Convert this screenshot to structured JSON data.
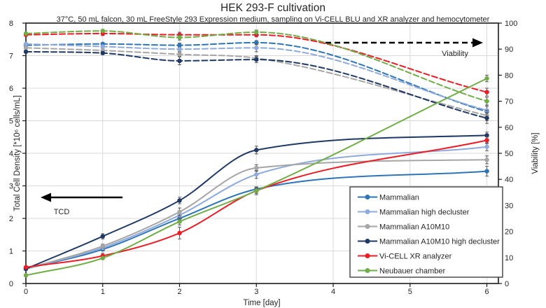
{
  "chart_data": {
    "type": "line",
    "title": "HEK 293-F cultivation",
    "subtitle": "37°C, 50 mL falcon, 30 mL FreeStyle 293 Expression medium, sampling on Vi-CELL BLU and XR analyzer and hemocytometer",
    "xlabel": "Time [day]",
    "ylabel_left": "Total Cell Density [*10⁶ cells/mL]",
    "ylabel_right": "Viability [%]",
    "x": [
      0,
      1,
      2,
      3,
      6
    ],
    "xlim": [
      0,
      6.15
    ],
    "ylim_left": [
      0,
      8
    ],
    "ylim_right": [
      0,
      100
    ],
    "x_ticks": [
      0,
      1,
      2,
      3,
      4,
      5,
      6
    ],
    "y_ticks_left": [
      0,
      1,
      2,
      3,
      4,
      5,
      6,
      7,
      8
    ],
    "y_ticks_right": [
      0,
      10,
      20,
      30,
      40,
      50,
      60,
      70,
      80,
      90,
      100
    ],
    "grid": true,
    "colors": {
      "grid": "#d9d9d9",
      "axis": "#1a1a1a",
      "error_bar": "#595959",
      "annotation": "#000000"
    },
    "legend": {
      "position": "bottom-right",
      "entries": [
        "Mammalian",
        "Mammalian high decluster",
        "Mammalian A10M10",
        "Mammalian A10M10 high decluster",
        "Vi-CELL XR analyzer",
        "Neubauer chamber"
      ]
    },
    "series_tcd": [
      {
        "name": "Mammalian",
        "color": "#2E75B6",
        "style": "solid",
        "values": [
          0.45,
          1.05,
          2.0,
          2.9,
          3.45
        ],
        "err": [
          0,
          0.05,
          0.06,
          0.06,
          0.15
        ]
      },
      {
        "name": "Mammalian high decluster",
        "color": "#8FAADC",
        "style": "solid",
        "values": [
          0.45,
          1.1,
          2.1,
          3.35,
          4.2
        ],
        "err": [
          0,
          0.06,
          0.1,
          0.12,
          0.12
        ]
      },
      {
        "name": "Mammalian A10M10",
        "color": "#A6A6A6",
        "style": "solid",
        "values": [
          0.45,
          1.15,
          2.2,
          3.55,
          3.8
        ],
        "err": [
          0,
          0.06,
          0.12,
          0.1,
          0.12
        ]
      },
      {
        "name": "Mammalian A10M10 high decluster",
        "color": "#1F3864",
        "style": "solid",
        "values": [
          0.45,
          1.45,
          2.55,
          4.1,
          4.55
        ],
        "err": [
          0,
          0.08,
          0.1,
          0.12,
          0.1
        ]
      },
      {
        "name": "Vi-CELL XR analyzer",
        "color": "#ED1C24",
        "style": "solid",
        "values": [
          0.5,
          0.85,
          1.55,
          2.85,
          4.4
        ],
        "err": [
          0,
          0.08,
          0.18,
          0.08,
          0.1
        ]
      },
      {
        "name": "Neubauer chamber",
        "color": "#70AD47",
        "style": "solid",
        "values": [
          0.25,
          0.78,
          1.9,
          2.85,
          6.3
        ],
        "err": [
          0,
          0.04,
          0.1,
          0.12,
          0.1
        ]
      }
    ],
    "series_viability": [
      {
        "name": "Mammalian",
        "color": "#2E75B6",
        "style": "dashed",
        "values": [
          91.5,
          92,
          91.5,
          92.5,
          66
        ],
        "err": [
          0,
          0.5,
          0.8,
          0.8,
          2
        ]
      },
      {
        "name": "Mammalian high decluster",
        "color": "#8FAADC",
        "style": "dashed",
        "values": [
          92,
          91,
          90,
          90.5,
          66.5
        ],
        "err": [
          0,
          0.6,
          0.8,
          1.5,
          2
        ]
      },
      {
        "name": "Mammalian A10M10",
        "color": "#A6A6A6",
        "style": "dashed",
        "values": [
          90.5,
          89.5,
          88,
          86.5,
          64.5
        ],
        "err": [
          0,
          0.5,
          0.8,
          1,
          2
        ]
      },
      {
        "name": "Mammalian A10M10 high decluster",
        "color": "#1F3864",
        "style": "dashed",
        "values": [
          89,
          88.5,
          85.5,
          86,
          63.5
        ],
        "err": [
          0,
          0.6,
          1.5,
          1.2,
          2
        ]
      },
      {
        "name": "Vi-CELL XR analyzer",
        "color": "#ED1C24",
        "style": "dashed",
        "values": [
          95.5,
          96,
          95.5,
          95.5,
          73.5
        ],
        "err": [
          0,
          0.8,
          1,
          0.8,
          1.5
        ]
      },
      {
        "name": "Neubauer chamber",
        "color": "#70AD47",
        "style": "dashed",
        "values": [
          96,
          97,
          94.5,
          96.5,
          70
        ],
        "err": [
          0,
          0.5,
          1,
          0.8,
          1.5
        ]
      }
    ],
    "annotations": {
      "tcd": "TCD",
      "viability": "Viability"
    }
  }
}
